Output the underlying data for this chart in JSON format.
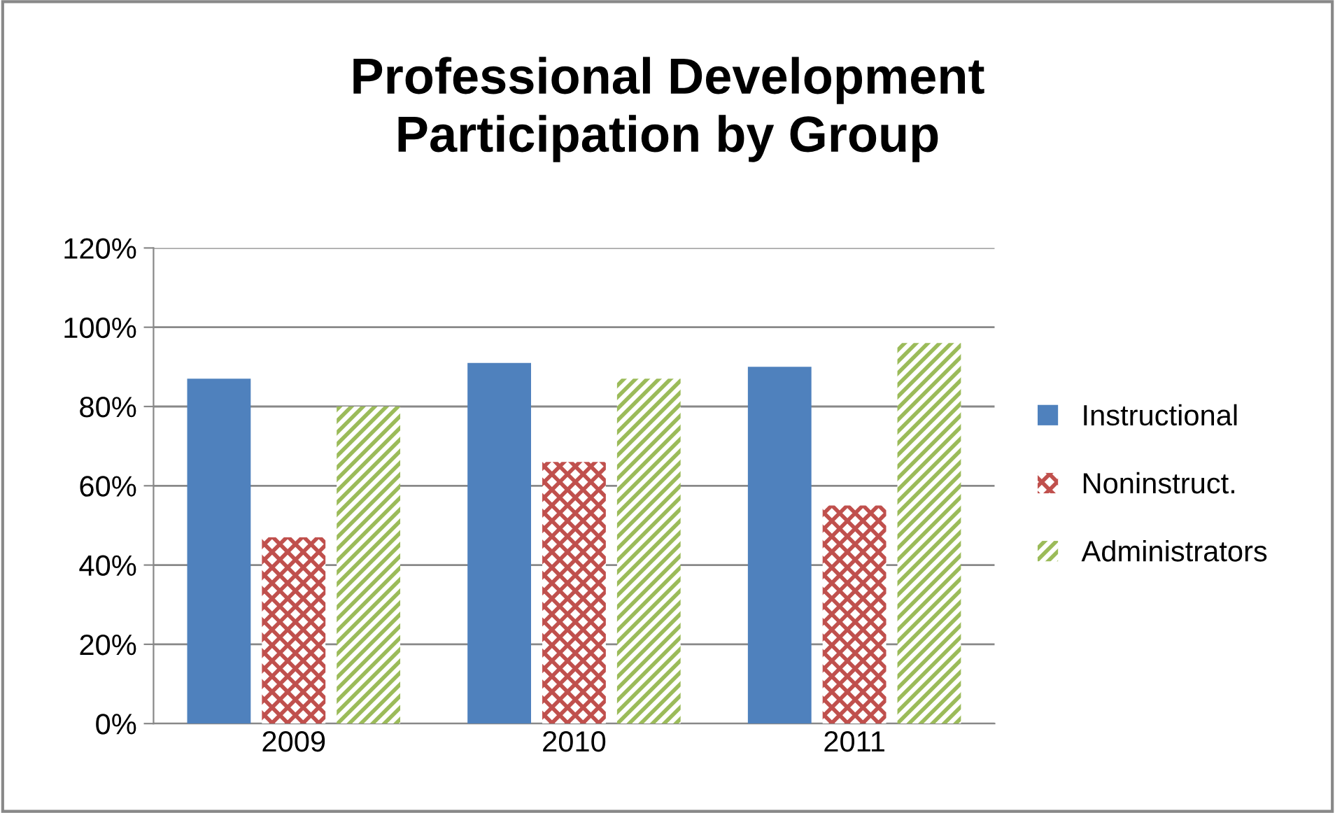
{
  "chart_data": {
    "type": "bar",
    "title": "Professional Development\nParticipation by Group",
    "categories": [
      "2009",
      "2010",
      "2011"
    ],
    "series": [
      {
        "name": "Instructional",
        "color": "#4f81bd",
        "values": [
          87,
          91,
          90
        ]
      },
      {
        "name": "Noninstruct.",
        "color": "#c0504d",
        "values": [
          47,
          66,
          55
        ]
      },
      {
        "name": "Administrators",
        "color": "#9bbb59",
        "values": [
          80,
          87,
          96
        ]
      }
    ],
    "ylim": [
      0,
      120
    ],
    "yticks": [
      {
        "value": 0,
        "label": "0%"
      },
      {
        "value": 20,
        "label": "20%"
      },
      {
        "value": 40,
        "label": "40%"
      },
      {
        "value": 60,
        "label": "60%"
      },
      {
        "value": 80,
        "label": "80%"
      },
      {
        "value": 100,
        "label": "100%"
      },
      {
        "value": 120,
        "label": "120%"
      }
    ],
    "grid": "y",
    "legend": "right"
  }
}
